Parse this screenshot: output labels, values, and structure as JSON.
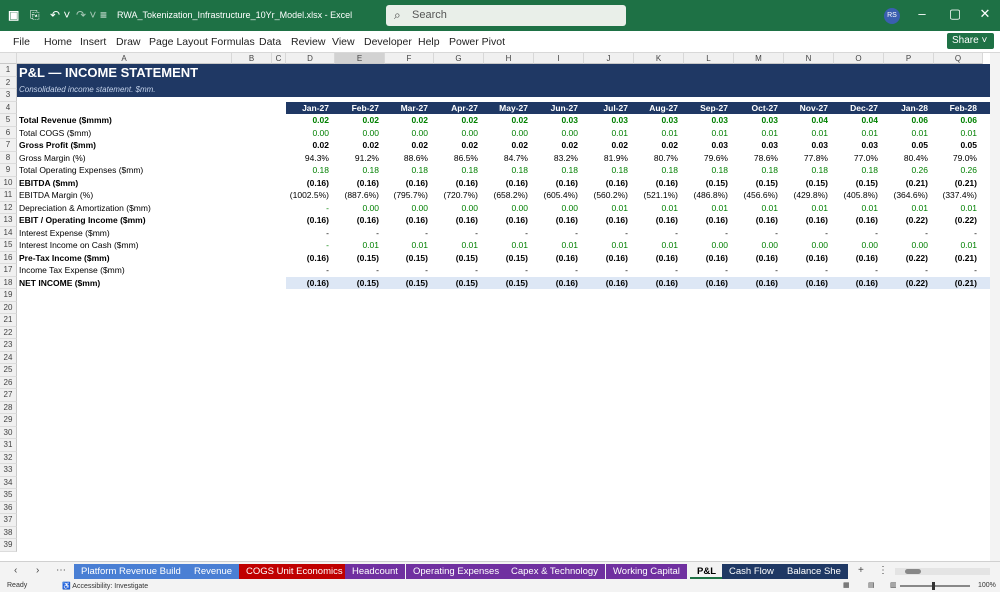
{
  "title_bar": {
    "filename": "RWA_Tokenization_Infrastructure_10Yr_Model.xlsx",
    "app": "Excel",
    "search_placeholder": "Search",
    "user_initials": "RS"
  },
  "menu": [
    "File",
    "Home",
    "Insert",
    "Draw",
    "Page Layout",
    "Formulas",
    "Data",
    "Review",
    "View",
    "Developer",
    "Help",
    "Power Pivot"
  ],
  "share_label": "Share",
  "columns": [
    "A",
    "B",
    "C",
    "D",
    "E",
    "F",
    "G",
    "H",
    "I",
    "J",
    "K",
    "L",
    "M",
    "N",
    "O",
    "P",
    "Q"
  ],
  "sheet": {
    "title": "P&L — INCOME STATEMENT",
    "subtitle": "Consolidated income statement. $mm.",
    "months": [
      "Jan-27",
      "Feb-27",
      "Mar-27",
      "Apr-27",
      "May-27",
      "Jun-27",
      "Jul-27",
      "Aug-27",
      "Sep-27",
      "Oct-27",
      "Nov-27",
      "Dec-27",
      "Jan-28",
      "Feb-28"
    ],
    "rows": [
      {
        "label": "Total Revenue ($mmm)",
        "bold": true,
        "green": true,
        "values": [
          "0.02",
          "0.02",
          "0.02",
          "0.02",
          "0.02",
          "0.03",
          "0.03",
          "0.03",
          "0.03",
          "0.03",
          "0.04",
          "0.04",
          "0.06",
          "0.06"
        ]
      },
      {
        "label": "Total COGS ($mm)",
        "bold": false,
        "green": true,
        "values": [
          "0.00",
          "0.00",
          "0.00",
          "0.00",
          "0.00",
          "0.00",
          "0.01",
          "0.01",
          "0.01",
          "0.01",
          "0.01",
          "0.01",
          "0.01",
          "0.01"
        ]
      },
      {
        "label": "Gross Profit ($mm)",
        "bold": true,
        "green": false,
        "values": [
          "0.02",
          "0.02",
          "0.02",
          "0.02",
          "0.02",
          "0.02",
          "0.02",
          "0.02",
          "0.03",
          "0.03",
          "0.03",
          "0.03",
          "0.05",
          "0.05"
        ]
      },
      {
        "label": "Gross Margin (%)",
        "bold": false,
        "green": false,
        "values": [
          "94.3%",
          "91.2%",
          "88.6%",
          "86.5%",
          "84.7%",
          "83.2%",
          "81.9%",
          "80.7%",
          "79.6%",
          "78.6%",
          "77.8%",
          "77.0%",
          "80.4%",
          "79.0%"
        ]
      },
      {
        "label": "Total Operating Expenses ($mm)",
        "bold": false,
        "green": true,
        "values": [
          "0.18",
          "0.18",
          "0.18",
          "0.18",
          "0.18",
          "0.18",
          "0.18",
          "0.18",
          "0.18",
          "0.18",
          "0.18",
          "0.18",
          "0.26",
          "0.26"
        ]
      },
      {
        "label": "EBITDA ($mm)",
        "bold": true,
        "green": false,
        "values": [
          "(0.16)",
          "(0.16)",
          "(0.16)",
          "(0.16)",
          "(0.16)",
          "(0.16)",
          "(0.16)",
          "(0.16)",
          "(0.15)",
          "(0.15)",
          "(0.15)",
          "(0.15)",
          "(0.21)",
          "(0.21)"
        ]
      },
      {
        "label": "EBITDA Margin (%)",
        "bold": false,
        "green": false,
        "values": [
          "(1002.5%)",
          "(887.6%)",
          "(795.7%)",
          "(720.7%)",
          "(658.2%)",
          "(605.4%)",
          "(560.2%)",
          "(521.1%)",
          "(486.8%)",
          "(456.6%)",
          "(429.8%)",
          "(405.8%)",
          "(364.6%)",
          "(337.4%)"
        ]
      },
      {
        "label": "Depreciation & Amortization ($mm)",
        "bold": false,
        "green": true,
        "values": [
          "-",
          "0.00",
          "0.00",
          "0.00",
          "0.00",
          "0.00",
          "0.01",
          "0.01",
          "0.01",
          "0.01",
          "0.01",
          "0.01",
          "0.01",
          "0.01"
        ]
      },
      {
        "label": "EBIT / Operating Income ($mm)",
        "bold": true,
        "green": false,
        "values": [
          "(0.16)",
          "(0.16)",
          "(0.16)",
          "(0.16)",
          "(0.16)",
          "(0.16)",
          "(0.16)",
          "(0.16)",
          "(0.16)",
          "(0.16)",
          "(0.16)",
          "(0.16)",
          "(0.22)",
          "(0.22)"
        ]
      },
      {
        "label": "Interest Expense ($mm)",
        "bold": false,
        "green": false,
        "values": [
          "-",
          "-",
          "-",
          "-",
          "-",
          "-",
          "-",
          "-",
          "-",
          "-",
          "-",
          "-",
          "-",
          "-"
        ]
      },
      {
        "label": "Interest Income on Cash ($mm)",
        "bold": false,
        "green": true,
        "values": [
          "-",
          "0.01",
          "0.01",
          "0.01",
          "0.01",
          "0.01",
          "0.01",
          "0.01",
          "0.00",
          "0.00",
          "0.00",
          "0.00",
          "0.00",
          "0.01"
        ]
      },
      {
        "label": "Pre-Tax Income ($mm)",
        "bold": true,
        "green": false,
        "values": [
          "(0.16)",
          "(0.15)",
          "(0.15)",
          "(0.15)",
          "(0.15)",
          "(0.16)",
          "(0.16)",
          "(0.16)",
          "(0.16)",
          "(0.16)",
          "(0.16)",
          "(0.16)",
          "(0.22)",
          "(0.21)"
        ]
      },
      {
        "label": "Income Tax Expense ($mm)",
        "bold": false,
        "green": false,
        "values": [
          "-",
          "-",
          "-",
          "-",
          "-",
          "-",
          "-",
          "-",
          "-",
          "-",
          "-",
          "-",
          "-",
          "-"
        ]
      },
      {
        "label": "NET INCOME ($mm)",
        "bold": true,
        "green": false,
        "values": [
          "(0.16)",
          "(0.15)",
          "(0.15)",
          "(0.15)",
          "(0.15)",
          "(0.16)",
          "(0.16)",
          "(0.16)",
          "(0.16)",
          "(0.16)",
          "(0.16)",
          "(0.16)",
          "(0.22)",
          "(0.21)"
        ]
      }
    ]
  },
  "tabs": [
    {
      "label": "Platform Revenue Build",
      "color": "#4a7fd4"
    },
    {
      "label": "Revenue",
      "color": "#4a7fd4"
    },
    {
      "label": "COGS Unit Economics",
      "color": "#c00000"
    },
    {
      "label": "Headcount",
      "color": "#7030a0"
    },
    {
      "label": "Operating Expenses",
      "color": "#7030a0"
    },
    {
      "label": "Capex & Technology",
      "color": "#7030a0"
    },
    {
      "label": "Working Capital",
      "color": "#7030a0"
    },
    {
      "label": "P&L",
      "color": "#ffffff"
    },
    {
      "label": "Cash Flow",
      "color": "#1f3864"
    },
    {
      "label": "Balance She",
      "color": "#1f3864"
    }
  ],
  "status": {
    "ready": "Ready",
    "accessibility": "Accessibility: Investigate",
    "zoom": "100%"
  }
}
